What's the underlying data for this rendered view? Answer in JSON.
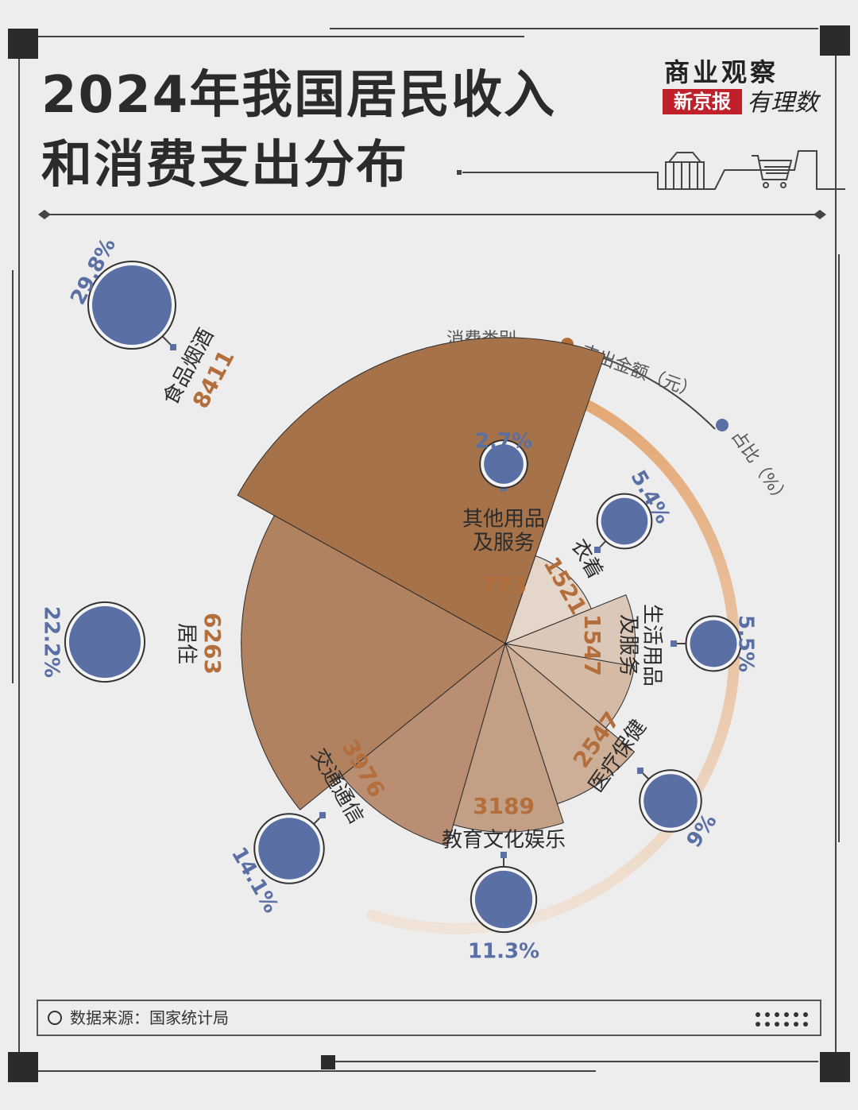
{
  "title": {
    "line1": "2024年我国居民收入",
    "line2": "和消费支出分布"
  },
  "brand": {
    "top": "商业观察",
    "paper": "新京报",
    "hand": "有理数"
  },
  "legend": {
    "category": "消费类别",
    "amount": "支出金额（元）",
    "share": "占比（%）",
    "amount_color": "#b36e3c",
    "share_color": "#5a6fa3"
  },
  "source": "数据来源：国家统计局",
  "chart_data": {
    "type": "polar-bar",
    "title": "2024年我国居民收入和消费支出分布",
    "unit_amount": "元",
    "unit_share": "%",
    "categories": [
      "食品烟酒",
      "居住",
      "交通通信",
      "教育文化娱乐",
      "医疗保健",
      "生活用品及服务",
      "衣着",
      "其他用品及服务"
    ],
    "amounts": [
      8411,
      6263,
      3976,
      3189,
      2547,
      1547,
      1521,
      773
    ],
    "amount_labels": [
      "8411",
      "6263",
      "3976",
      "3189",
      "2547",
      "1547",
      "1521",
      "773"
    ],
    "shares": [
      29.8,
      22.2,
      14.1,
      11.3,
      9,
      5.5,
      5.4,
      2.7
    ],
    "share_labels": [
      "29.8%",
      "22.2%",
      "14.1%",
      "11.3%",
      "9%",
      "5.5%",
      "5.4%",
      "2.7%"
    ],
    "colors": [
      "#a6724a",
      "#b08260",
      "#b98e72",
      "#c3a085",
      "#cdaf97",
      "#d5bba6",
      "#dcc8b8",
      "#e5d6ca"
    ]
  }
}
